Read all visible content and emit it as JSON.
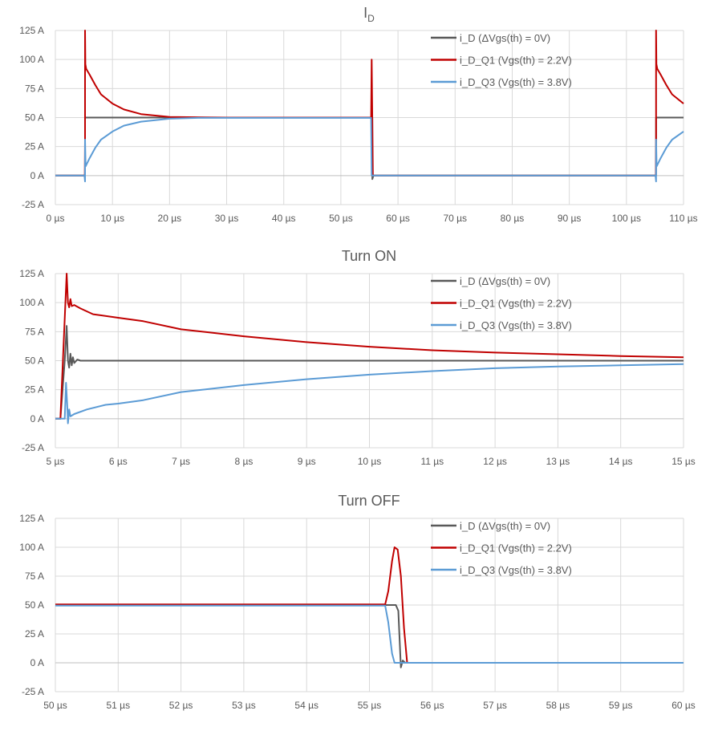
{
  "chart_data": [
    {
      "type": "line",
      "title": "I",
      "title_subscript": "D",
      "xlim": [
        0,
        110
      ],
      "ylim": [
        -25,
        125
      ],
      "xticks": [
        0,
        10,
        20,
        30,
        40,
        50,
        60,
        70,
        80,
        90,
        100,
        110
      ],
      "yticks": [
        -25,
        0,
        25,
        50,
        75,
        100,
        125
      ],
      "xtick_labels": [
        "0 µs",
        "10 µs",
        "20 µs",
        "30 µs",
        "40 µs",
        "50 µs",
        "60 µs",
        "70 µs",
        "80 µs",
        "90 µs",
        "100 µs",
        "110 µs"
      ],
      "ytick_labels": [
        "-25 A",
        "0 A",
        "25 A",
        "50 A",
        "75 A",
        "100 A",
        "125 A"
      ],
      "grid": true,
      "legend_position": "top-right",
      "series": [
        {
          "name": "i_D (ΔVgs(th) = 0V)",
          "color": "#595959",
          "x": [
            0,
            5.2,
            5.2,
            55.5,
            55.5,
            55.7,
            105.2,
            105.2,
            110
          ],
          "y": [
            0,
            0,
            50,
            50,
            -3,
            0,
            0,
            50,
            50
          ]
        },
        {
          "name": "i_D_Q1 (Vgs(th) = 2.2V)",
          "color": "#c00000",
          "x": [
            0,
            5.15,
            5.2,
            5.2,
            5.25,
            5.4,
            6,
            7,
            8,
            10,
            12,
            15,
            20,
            30,
            55.3,
            55.4,
            55.6,
            105.15,
            105.2,
            105.2,
            105.25,
            105.4,
            106,
            107,
            108,
            110
          ],
          "y": [
            0,
            0,
            31,
            125,
            96,
            92,
            87,
            78,
            70,
            62,
            57,
            53,
            50.5,
            50,
            50,
            100,
            0,
            0,
            31,
            125,
            96,
            92,
            87,
            78,
            70,
            62
          ]
        },
        {
          "name": "i_D_Q3 (Vgs(th) = 3.8V)",
          "color": "#5b9bd5",
          "x": [
            0,
            5.1,
            5.2,
            5.2,
            5.3,
            6,
            7,
            8,
            10,
            12,
            15,
            20,
            25,
            55.3,
            55.4,
            105.1,
            105.2,
            105.2,
            105.3,
            106,
            107,
            108,
            110
          ],
          "y": [
            0,
            0,
            -5,
            31,
            8,
            15,
            24,
            31,
            38,
            43,
            46.5,
            49,
            49.7,
            49.7,
            0,
            0,
            -5,
            31,
            8,
            15,
            24,
            31,
            38
          ]
        }
      ]
    },
    {
      "type": "line",
      "title": "Turn ON",
      "xlim": [
        5,
        15
      ],
      "ylim": [
        -25,
        125
      ],
      "xticks": [
        5,
        6,
        7,
        8,
        9,
        10,
        11,
        12,
        13,
        14,
        15
      ],
      "yticks": [
        -25,
        0,
        25,
        50,
        75,
        100,
        125
      ],
      "xtick_labels": [
        "5 µs",
        "6 µs",
        "7 µs",
        "8 µs",
        "9 µs",
        "10 µs",
        "11 µs",
        "12 µs",
        "13 µs",
        "14 µs",
        "15 µs"
      ],
      "ytick_labels": [
        "-25 A",
        "0 A",
        "25 A",
        "50 A",
        "75 A",
        "100 A",
        "125 A"
      ],
      "grid": true,
      "legend_position": "top-right",
      "series": [
        {
          "name": "i_D (ΔVgs(th) = 0V)",
          "color": "#595959",
          "x": [
            5,
            5.08,
            5.15,
            5.18,
            5.2,
            5.22,
            5.24,
            5.26,
            5.28,
            5.3,
            5.35,
            5.4,
            15
          ],
          "y": [
            0,
            0,
            50,
            80,
            50,
            44,
            56,
            46,
            53,
            48,
            51,
            50,
            50
          ]
        },
        {
          "name": "i_D_Q1 (Vgs(th) = 2.2V)",
          "color": "#c00000",
          "x": [
            5,
            5.08,
            5.18,
            5.2,
            5.22,
            5.24,
            5.26,
            5.3,
            5.4,
            5.6,
            6,
            6.4,
            7,
            8,
            9,
            10,
            11,
            12,
            13,
            14,
            15
          ],
          "y": [
            0,
            0,
            125,
            100,
            96,
            103,
            97,
            98,
            95,
            90,
            87,
            84,
            77,
            71,
            66,
            62,
            59,
            57,
            55.5,
            54,
            53
          ]
        },
        {
          "name": "i_D_Q3 (Vgs(th) = 3.8V)",
          "color": "#5b9bd5",
          "x": [
            5,
            5.1,
            5.15,
            5.17,
            5.19,
            5.2,
            5.22,
            5.24,
            5.3,
            5.5,
            5.8,
            6,
            6.4,
            7,
            8,
            9,
            10,
            11,
            12,
            13,
            14,
            15
          ],
          "y": [
            0,
            0,
            0,
            31,
            10,
            -4,
            8,
            2,
            4,
            8,
            12,
            13,
            16,
            23,
            29,
            34,
            38,
            41,
            43.5,
            45,
            46,
            47
          ]
        }
      ]
    },
    {
      "type": "line",
      "title": "Turn OFF",
      "xlim": [
        50,
        60
      ],
      "ylim": [
        -25,
        125
      ],
      "xticks": [
        50,
        51,
        52,
        53,
        54,
        55,
        56,
        57,
        58,
        59,
        60
      ],
      "yticks": [
        -25,
        0,
        25,
        50,
        75,
        100,
        125
      ],
      "xtick_labels": [
        "50 µs",
        "51 µs",
        "52 µs",
        "53 µs",
        "54 µs",
        "55 µs",
        "56 µs",
        "57 µs",
        "58 µs",
        "59 µs",
        "60 µs"
      ],
      "ytick_labels": [
        "-25 A",
        "0 A",
        "25 A",
        "50 A",
        "75 A",
        "100 A",
        "125 A"
      ],
      "grid": true,
      "legend_position": "top-right",
      "series": [
        {
          "name": "i_D (ΔVgs(th) = 0V)",
          "color": "#595959",
          "x": [
            50,
            55.42,
            55.46,
            55.5,
            55.53,
            55.57,
            60
          ],
          "y": [
            50,
            50,
            45,
            -4,
            2,
            0,
            0
          ]
        },
        {
          "name": "i_D_Q1 (Vgs(th) = 2.2V)",
          "color": "#c00000",
          "x": [
            50,
            55.25,
            55.3,
            55.36,
            55.4,
            55.45,
            55.5,
            55.55,
            55.6,
            60
          ],
          "y": [
            50.5,
            50.5,
            62,
            88,
            100,
            98,
            75,
            30,
            0,
            0
          ]
        },
        {
          "name": "i_D_Q3 (Vgs(th) = 3.8V)",
          "color": "#5b9bd5",
          "x": [
            50,
            55.25,
            55.3,
            55.36,
            55.4,
            60
          ],
          "y": [
            49.5,
            49.5,
            35,
            8,
            0,
            0
          ]
        }
      ]
    }
  ]
}
